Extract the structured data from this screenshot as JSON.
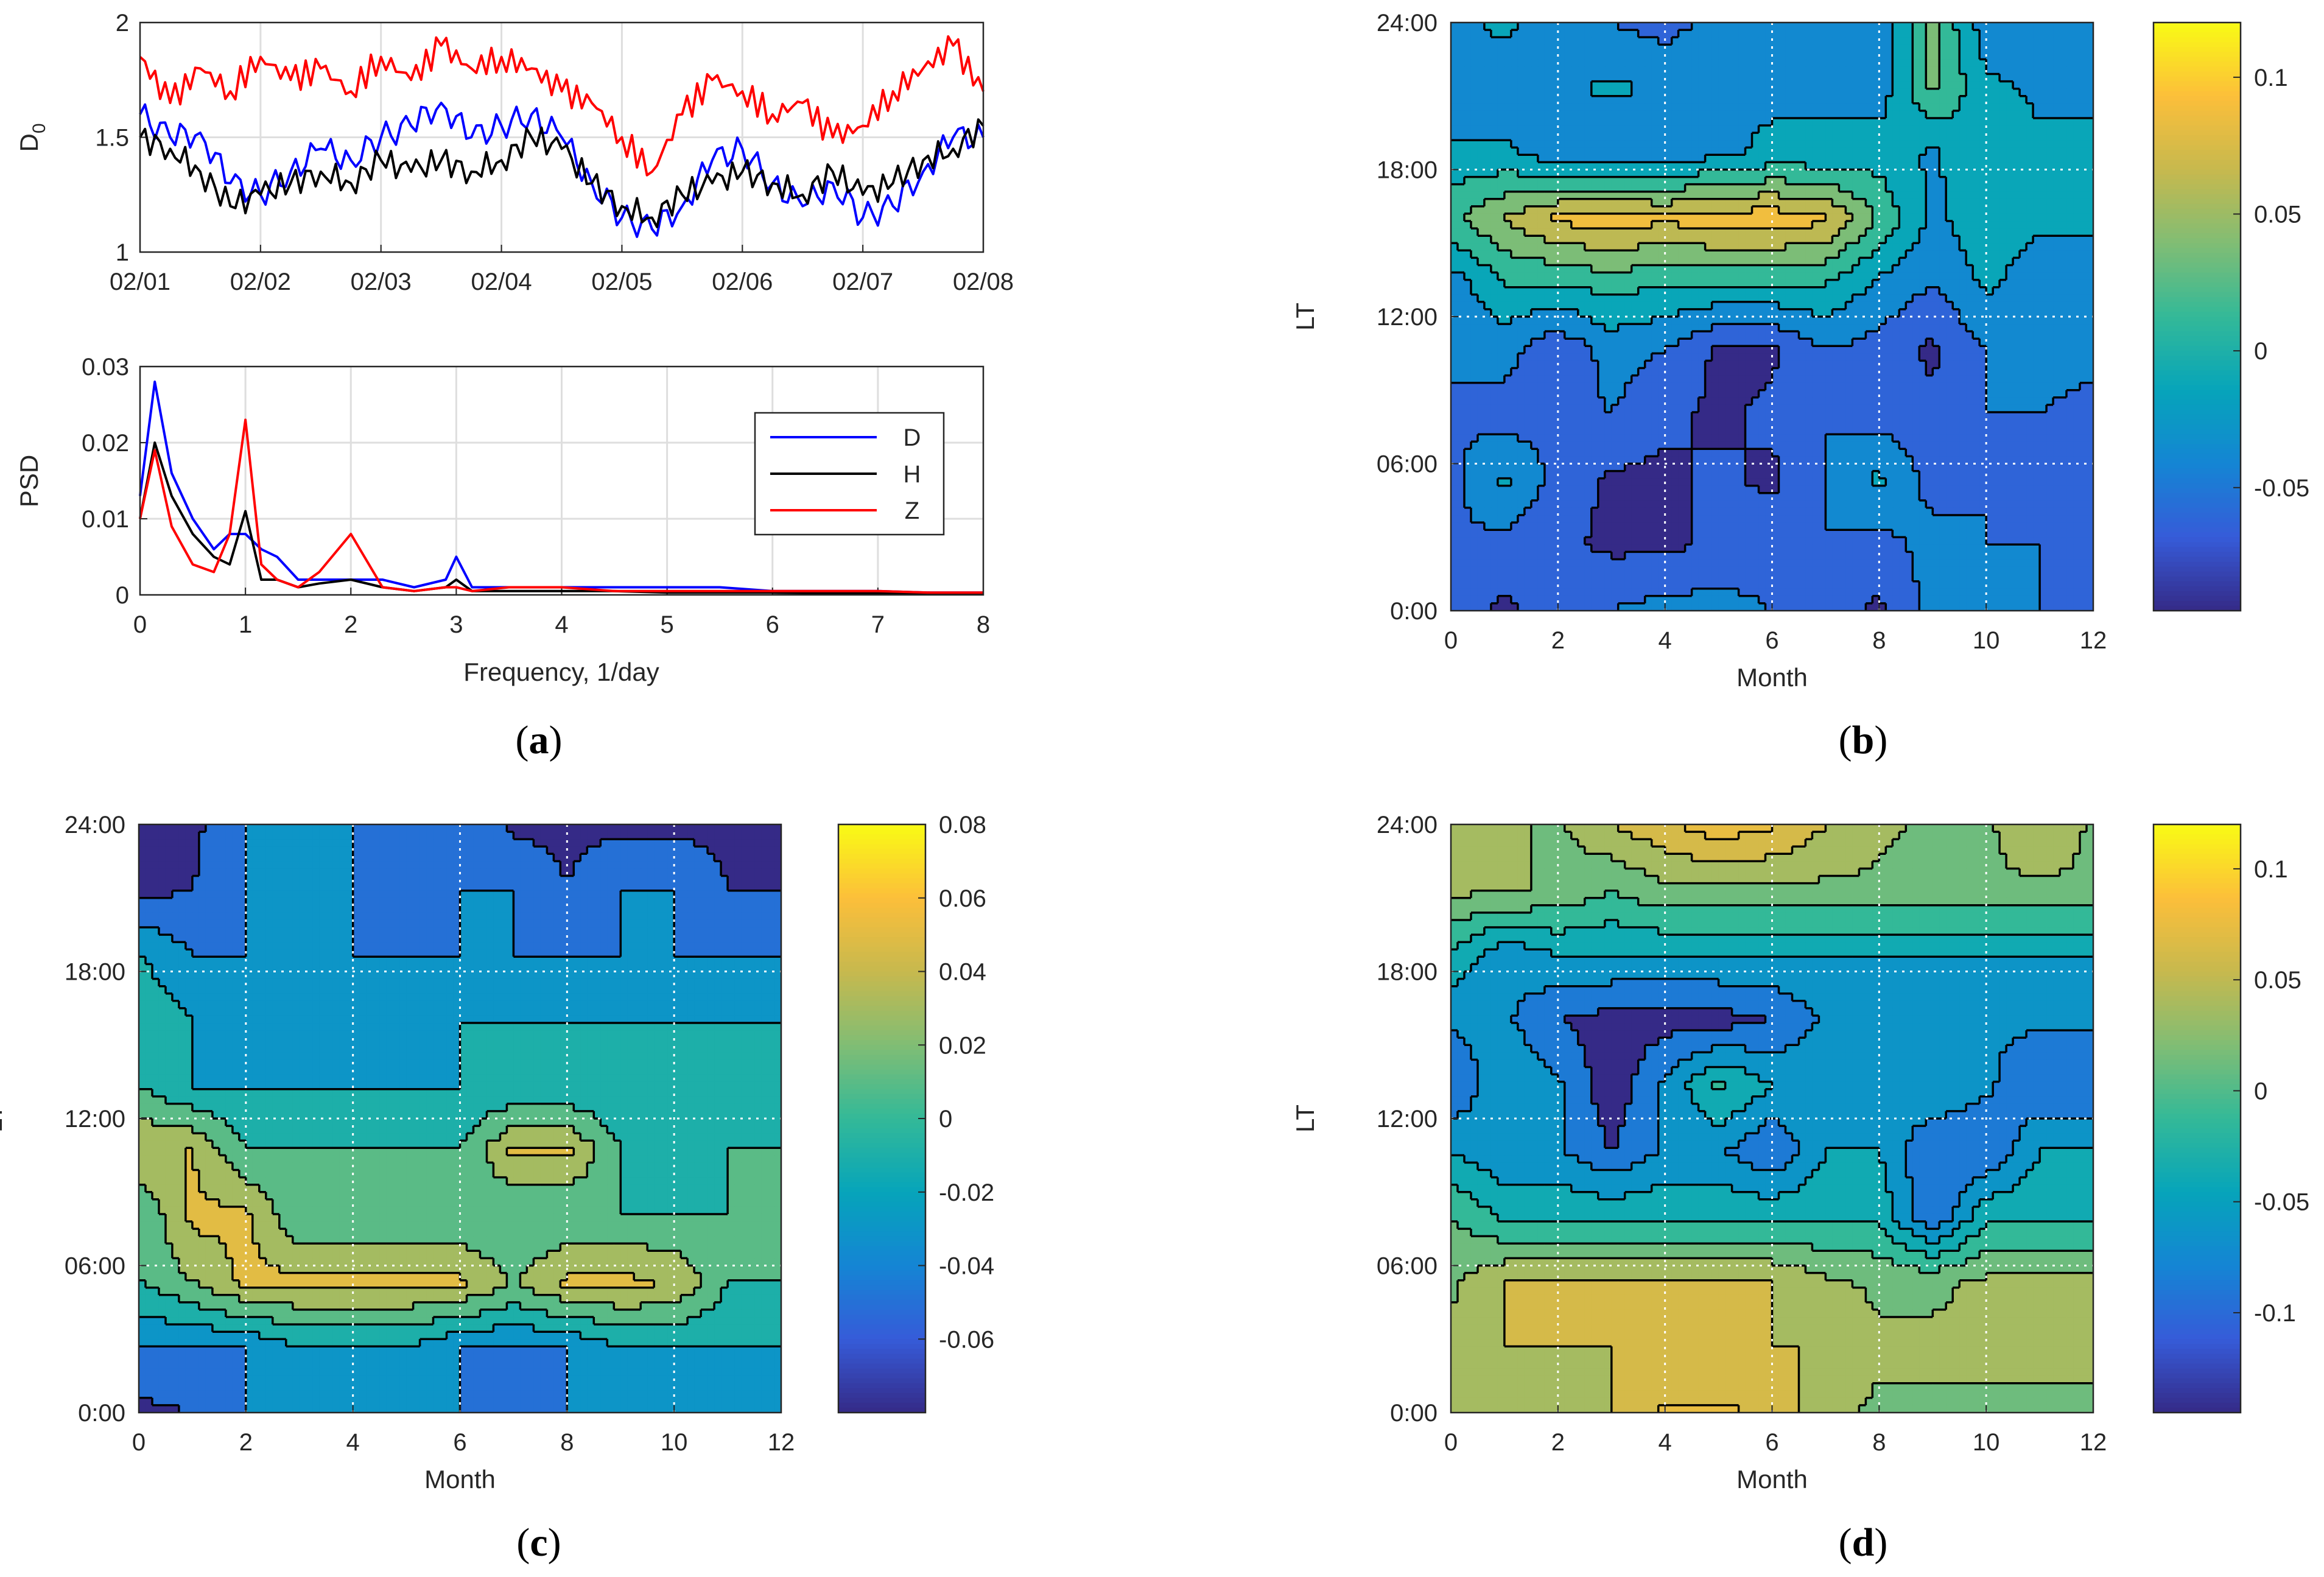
{
  "chart_data": [
    {
      "id": "a-top",
      "panel": "(a)",
      "type": "line",
      "ylabel_main": "D",
      "ylabel_sub": "0",
      "ylim": [
        1,
        2
      ],
      "yticks": [
        "1",
        "1.5",
        "2"
      ],
      "xlim": [
        0,
        7
      ],
      "xticks": [
        "02/01",
        "02/02",
        "02/03",
        "02/04",
        "02/05",
        "02/06",
        "02/07",
        "02/08"
      ],
      "series": [
        {
          "name": "D",
          "color": "#0000ff",
          "x": [
            0,
            0.25,
            0.5,
            0.75,
            1,
            1.25,
            1.5,
            1.75,
            2,
            2.25,
            2.5,
            2.75,
            3,
            3.25,
            3.5,
            3.75,
            4,
            4.25,
            4.5,
            4.75,
            5,
            5.25,
            5.5,
            5.75,
            6,
            6.25,
            6.5,
            6.75,
            7
          ],
          "values": [
            1.6,
            1.5,
            1.52,
            1.3,
            1.25,
            1.35,
            1.45,
            1.4,
            1.5,
            1.55,
            1.65,
            1.5,
            1.55,
            1.6,
            1.5,
            1.3,
            1.15,
            1.1,
            1.2,
            1.4,
            1.45,
            1.3,
            1.2,
            1.3,
            1.15,
            1.2,
            1.35,
            1.5,
            1.5
          ]
        },
        {
          "name": "H",
          "color": "#000000",
          "x": [
            0,
            0.25,
            0.5,
            0.75,
            1,
            1.25,
            1.5,
            1.75,
            2,
            2.25,
            2.5,
            2.75,
            3,
            3.25,
            3.5,
            3.75,
            4,
            4.25,
            4.5,
            4.75,
            5,
            5.25,
            5.5,
            5.75,
            6,
            6.25,
            6.5,
            6.75,
            7
          ],
          "values": [
            1.5,
            1.45,
            1.35,
            1.2,
            1.25,
            1.3,
            1.35,
            1.3,
            1.4,
            1.35,
            1.4,
            1.35,
            1.4,
            1.5,
            1.45,
            1.3,
            1.2,
            1.15,
            1.25,
            1.3,
            1.35,
            1.3,
            1.25,
            1.35,
            1.25,
            1.3,
            1.4,
            1.45,
            1.55
          ]
        },
        {
          "name": "Z",
          "color": "#ff0000",
          "x": [
            0,
            0.25,
            0.5,
            0.75,
            1,
            1.25,
            1.5,
            1.75,
            2,
            2.25,
            2.5,
            2.75,
            3,
            3.25,
            3.5,
            3.75,
            4,
            4.25,
            4.5,
            4.75,
            5,
            5.25,
            5.5,
            5.75,
            6,
            6.25,
            6.5,
            6.75,
            7
          ],
          "values": [
            1.85,
            1.65,
            1.8,
            1.7,
            1.85,
            1.75,
            1.8,
            1.7,
            1.85,
            1.75,
            1.9,
            1.8,
            1.85,
            1.8,
            1.7,
            1.65,
            1.5,
            1.35,
            1.6,
            1.75,
            1.7,
            1.6,
            1.65,
            1.5,
            1.55,
            1.7,
            1.8,
            1.9,
            1.7
          ]
        }
      ]
    },
    {
      "id": "a-bottom",
      "panel": "(a)",
      "type": "line",
      "ylabel": "PSD",
      "xlabel": "Frequency, 1/day",
      "ylim": [
        0,
        0.03
      ],
      "yticks": [
        "0",
        "0.01",
        "0.02",
        "0.03"
      ],
      "xlim": [
        0,
        8
      ],
      "xticks": [
        "0",
        "1",
        "2",
        "3",
        "4",
        "5",
        "6",
        "7",
        "8"
      ],
      "legend": [
        "D",
        "H",
        "Z"
      ],
      "legend_position": "top-right",
      "series": [
        {
          "name": "D",
          "color": "#0000ff",
          "x": [
            0,
            0.14,
            0.3,
            0.5,
            0.7,
            0.85,
            1,
            1.15,
            1.3,
            1.5,
            1.7,
            2,
            2.3,
            2.6,
            2.9,
            3,
            3.15,
            3.5,
            4,
            4.5,
            5,
            5.5,
            6,
            6.5,
            7,
            7.5,
            8
          ],
          "values": [
            0.013,
            0.028,
            0.016,
            0.01,
            0.006,
            0.008,
            0.008,
            0.006,
            0.005,
            0.002,
            0.002,
            0.002,
            0.002,
            0.001,
            0.002,
            0.005,
            0.001,
            0.001,
            0.001,
            0.001,
            0.001,
            0.001,
            0.0005,
            0.0005,
            0.0005,
            0.0003,
            0.0003
          ]
        },
        {
          "name": "H",
          "color": "#000000",
          "x": [
            0,
            0.14,
            0.3,
            0.5,
            0.7,
            0.85,
            1,
            1.15,
            1.3,
            1.5,
            1.7,
            2,
            2.3,
            2.6,
            2.9,
            3,
            3.15,
            3.5,
            4,
            4.5,
            5,
            5.5,
            6,
            6.5,
            7,
            7.5,
            8
          ],
          "values": [
            0.01,
            0.02,
            0.013,
            0.008,
            0.005,
            0.004,
            0.011,
            0.002,
            0.002,
            0.001,
            0.0015,
            0.002,
            0.001,
            0.0005,
            0.001,
            0.002,
            0.0005,
            0.0005,
            0.0005,
            0.0005,
            0.0003,
            0.0003,
            0.0003,
            0.0002,
            0.0002,
            0.0002,
            0.0002
          ]
        },
        {
          "name": "Z",
          "color": "#ff0000",
          "x": [
            0,
            0.14,
            0.3,
            0.5,
            0.7,
            0.85,
            1,
            1.15,
            1.3,
            1.5,
            1.7,
            2,
            2.3,
            2.6,
            2.9,
            3,
            3.15,
            3.5,
            4,
            4.5,
            5,
            5.5,
            6,
            6.5,
            7,
            7.5,
            8
          ],
          "values": [
            0.01,
            0.019,
            0.009,
            0.004,
            0.003,
            0.008,
            0.023,
            0.004,
            0.002,
            0.001,
            0.003,
            0.008,
            0.001,
            0.0005,
            0.001,
            0.001,
            0.0005,
            0.001,
            0.001,
            0.0005,
            0.0005,
            0.0005,
            0.0005,
            0.0005,
            0.0005,
            0.0003,
            0.0003
          ]
        }
      ]
    },
    {
      "id": "b",
      "panel": "(b)",
      "type": "heatmap",
      "xlabel": "Month",
      "ylabel": "LT",
      "xlim": [
        0,
        12
      ],
      "xticks": [
        "0",
        "2",
        "4",
        "6",
        "8",
        "10",
        "12"
      ],
      "yticks": [
        "0:00",
        "06:00",
        "12:00",
        "18:00",
        "24:00"
      ],
      "colorbar_range": [
        -0.095,
        0.12
      ],
      "colorbar_ticks": [
        "-0.05",
        "0",
        "0.05",
        "0.1"
      ],
      "values": [
        [
          -0.06,
          -0.08,
          -0.06,
          -0.05,
          -0.04,
          -0.04,
          -0.05,
          -0.06,
          -0.08,
          -0.04,
          -0.04,
          -0.05,
          -0.05
        ],
        [
          -0.05,
          -0.06,
          -0.07,
          -0.08,
          -0.08,
          -0.07,
          -0.06,
          -0.05,
          -0.06,
          -0.04,
          -0.05,
          -0.05,
          -0.06
        ],
        [
          -0.06,
          -0.02,
          -0.06,
          -0.08,
          -0.08,
          -0.07,
          -0.08,
          -0.05,
          -0.02,
          -0.06,
          -0.05,
          -0.06,
          -0.06
        ],
        [
          -0.05,
          -0.06,
          -0.06,
          -0.05,
          -0.07,
          -0.08,
          -0.07,
          -0.05,
          -0.06,
          -0.07,
          -0.05,
          -0.05,
          -0.06
        ],
        [
          -0.05,
          -0.04,
          -0.07,
          -0.04,
          -0.05,
          -0.08,
          -0.08,
          -0.05,
          -0.06,
          -0.08,
          -0.05,
          -0.04,
          -0.04
        ],
        [
          -0.04,
          0.0,
          0.0,
          0.01,
          0.0,
          0.0,
          0.0,
          0.0,
          -0.03,
          -0.05,
          -0.02,
          -0.04,
          -0.04
        ],
        [
          0.02,
          0.05,
          0.08,
          0.09,
          0.08,
          0.09,
          0.09,
          0.08,
          0.02,
          -0.03,
          -0.01,
          -0.02,
          -0.02
        ],
        [
          -0.02,
          -0.02,
          -0.04,
          -0.05,
          -0.05,
          -0.03,
          -0.02,
          -0.02,
          -0.01,
          -0.03,
          0.0,
          -0.02,
          -0.02
        ],
        [
          -0.04,
          -0.04,
          -0.03,
          -0.02,
          -0.03,
          -0.03,
          -0.03,
          -0.03,
          -0.04,
          0.03,
          -0.02,
          -0.03,
          -0.03
        ],
        [
          -0.03,
          -0.02,
          -0.04,
          -0.05,
          -0.06,
          -0.04,
          -0.03,
          -0.03,
          -0.04,
          0.03,
          -0.04,
          -0.03,
          -0.03
        ]
      ]
    },
    {
      "id": "c",
      "panel": "(c)",
      "type": "heatmap",
      "xlabel": "Month",
      "ylabel": "LT",
      "xlim": [
        0,
        12
      ],
      "xticks": [
        "0",
        "2",
        "4",
        "6",
        "8",
        "10",
        "12"
      ],
      "yticks": [
        "0:00",
        "06:00",
        "12:00",
        "18:00",
        "24:00"
      ],
      "colorbar_range": [
        -0.08,
        0.08
      ],
      "colorbar_ticks": [
        "-0.06",
        "-0.04",
        "-0.02",
        "0",
        "0.02",
        "0.04",
        "0.06",
        "0.08"
      ],
      "values": [
        [
          -0.065,
          -0.06,
          -0.04,
          -0.04,
          -0.04,
          -0.04,
          -0.04,
          -0.06,
          -0.04,
          -0.04,
          -0.04,
          -0.04,
          -0.04
        ],
        [
          -0.04,
          -0.04,
          -0.04,
          -0.02,
          -0.02,
          -0.02,
          -0.04,
          -0.04,
          -0.04,
          -0.02,
          -0.02,
          -0.02,
          -0.02
        ],
        [
          0.0,
          0.02,
          0.045,
          0.045,
          0.045,
          0.045,
          0.045,
          0.02,
          0.045,
          0.045,
          0.04,
          0.0,
          0.0
        ],
        [
          0.0,
          0.045,
          0.045,
          0.0,
          0.0,
          0.0,
          0.0,
          0.0,
          0.0,
          0.0,
          0.0,
          0.0,
          0.0
        ],
        [
          0.04,
          0.04,
          0.0,
          0.0,
          0.0,
          0.0,
          0.0,
          0.045,
          0.045,
          0.0,
          -0.02,
          0.0,
          0.0
        ],
        [
          0.0,
          -0.02,
          -0.02,
          -0.02,
          -0.02,
          -0.02,
          -0.02,
          -0.02,
          -0.02,
          -0.02,
          -0.02,
          -0.02,
          -0.02
        ],
        [
          0.0,
          -0.02,
          -0.04,
          -0.04,
          -0.04,
          -0.04,
          -0.02,
          -0.02,
          -0.02,
          -0.02,
          -0.02,
          -0.02,
          -0.02
        ],
        [
          -0.02,
          -0.04,
          -0.04,
          -0.04,
          -0.04,
          -0.04,
          -0.04,
          -0.04,
          -0.04,
          -0.04,
          -0.04,
          -0.04,
          -0.04
        ],
        [
          -0.065,
          -0.06,
          -0.04,
          -0.04,
          -0.04,
          -0.06,
          -0.04,
          -0.04,
          -0.06,
          -0.04,
          -0.04,
          -0.06,
          -0.06
        ],
        [
          -0.065,
          -0.065,
          -0.04,
          -0.04,
          -0.04,
          -0.04,
          -0.04,
          -0.065,
          -0.065,
          -0.065,
          -0.065,
          -0.065,
          -0.065
        ]
      ]
    },
    {
      "id": "d",
      "panel": "(d)",
      "type": "heatmap",
      "xlabel": "Month",
      "ylabel": "LT",
      "xlim": [
        0,
        12
      ],
      "xticks": [
        "0",
        "2",
        "4",
        "6",
        "8",
        "10",
        "12"
      ],
      "yticks": [
        "0:00",
        "06:00",
        "12:00",
        "18:00",
        "24:00"
      ],
      "colorbar_range": [
        -0.145,
        0.12
      ],
      "colorbar_ticks": [
        "-0.1",
        "-0.05",
        "0",
        "0.05",
        "0.1"
      ],
      "values": [
        [
          0.05,
          0.05,
          0.03,
          0.05,
          0.08,
          0.08,
          0.07,
          0.03,
          0.02,
          0.02,
          0.02,
          0.02,
          0.02
        ],
        [
          0.03,
          0.05,
          0.05,
          0.05,
          0.05,
          0.05,
          0.05,
          0.05,
          0.03,
          0.03,
          0.03,
          0.03,
          0.03
        ],
        [
          0.02,
          0.05,
          0.05,
          0.05,
          0.05,
          0.05,
          0.05,
          0.03,
          0.02,
          0.02,
          0.03,
          0.03,
          0.03
        ],
        [
          0.0,
          -0.03,
          -0.03,
          -0.03,
          -0.03,
          -0.03,
          -0.03,
          -0.03,
          -0.03,
          -0.1,
          -0.03,
          -0.03,
          -0.03
        ],
        [
          -0.05,
          -0.07,
          -0.07,
          -0.1,
          -0.07,
          -0.07,
          -0.1,
          -0.05,
          -0.05,
          -0.1,
          -0.1,
          -0.05,
          -0.05
        ],
        [
          -0.1,
          -0.05,
          -0.07,
          -0.12,
          -0.07,
          -0.02,
          -0.05,
          -0.05,
          -0.07,
          -0.05,
          -0.07,
          -0.1,
          -0.1
        ],
        [
          -0.07,
          -0.07,
          -0.1,
          -0.11,
          -0.11,
          -0.11,
          -0.1,
          -0.07,
          -0.07,
          -0.07,
          -0.07,
          -0.07,
          -0.07
        ],
        [
          -0.03,
          -0.07,
          -0.05,
          -0.05,
          -0.05,
          -0.05,
          -0.05,
          -0.05,
          -0.05,
          -0.05,
          -0.05,
          -0.05,
          -0.05
        ],
        [
          0.03,
          0.03,
          0.02,
          0.0,
          0.02,
          0.02,
          0.02,
          0.02,
          0.02,
          0.02,
          0.02,
          0.02,
          0.02
        ],
        [
          0.03,
          0.03,
          0.02,
          0.05,
          0.07,
          0.09,
          0.08,
          0.05,
          0.03,
          0.02,
          0.02,
          0.05,
          0.02
        ]
      ]
    }
  ]
}
